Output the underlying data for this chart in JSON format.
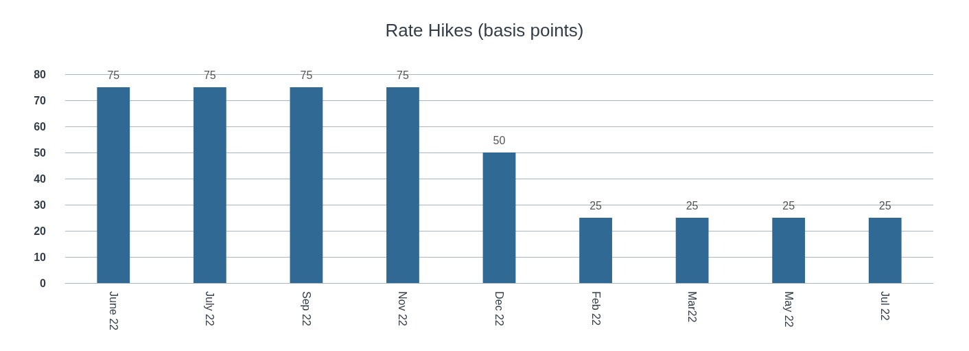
{
  "chart_data": {
    "type": "bar",
    "title": "Rate Hikes (basis points)",
    "categories": [
      "June 22",
      "July 22",
      "Sep 22",
      "Nov 22",
      "Dec 22",
      "Feb 22",
      "Mar22",
      "May 22",
      "Jul 22"
    ],
    "values": [
      75,
      75,
      75,
      75,
      50,
      25,
      25,
      25,
      25
    ],
    "color": "#306a94",
    "ylim": [
      0,
      80
    ],
    "yticks": [
      0,
      10,
      20,
      30,
      40,
      50,
      60,
      70,
      80
    ],
    "grid": "y",
    "data_labels": true
  }
}
